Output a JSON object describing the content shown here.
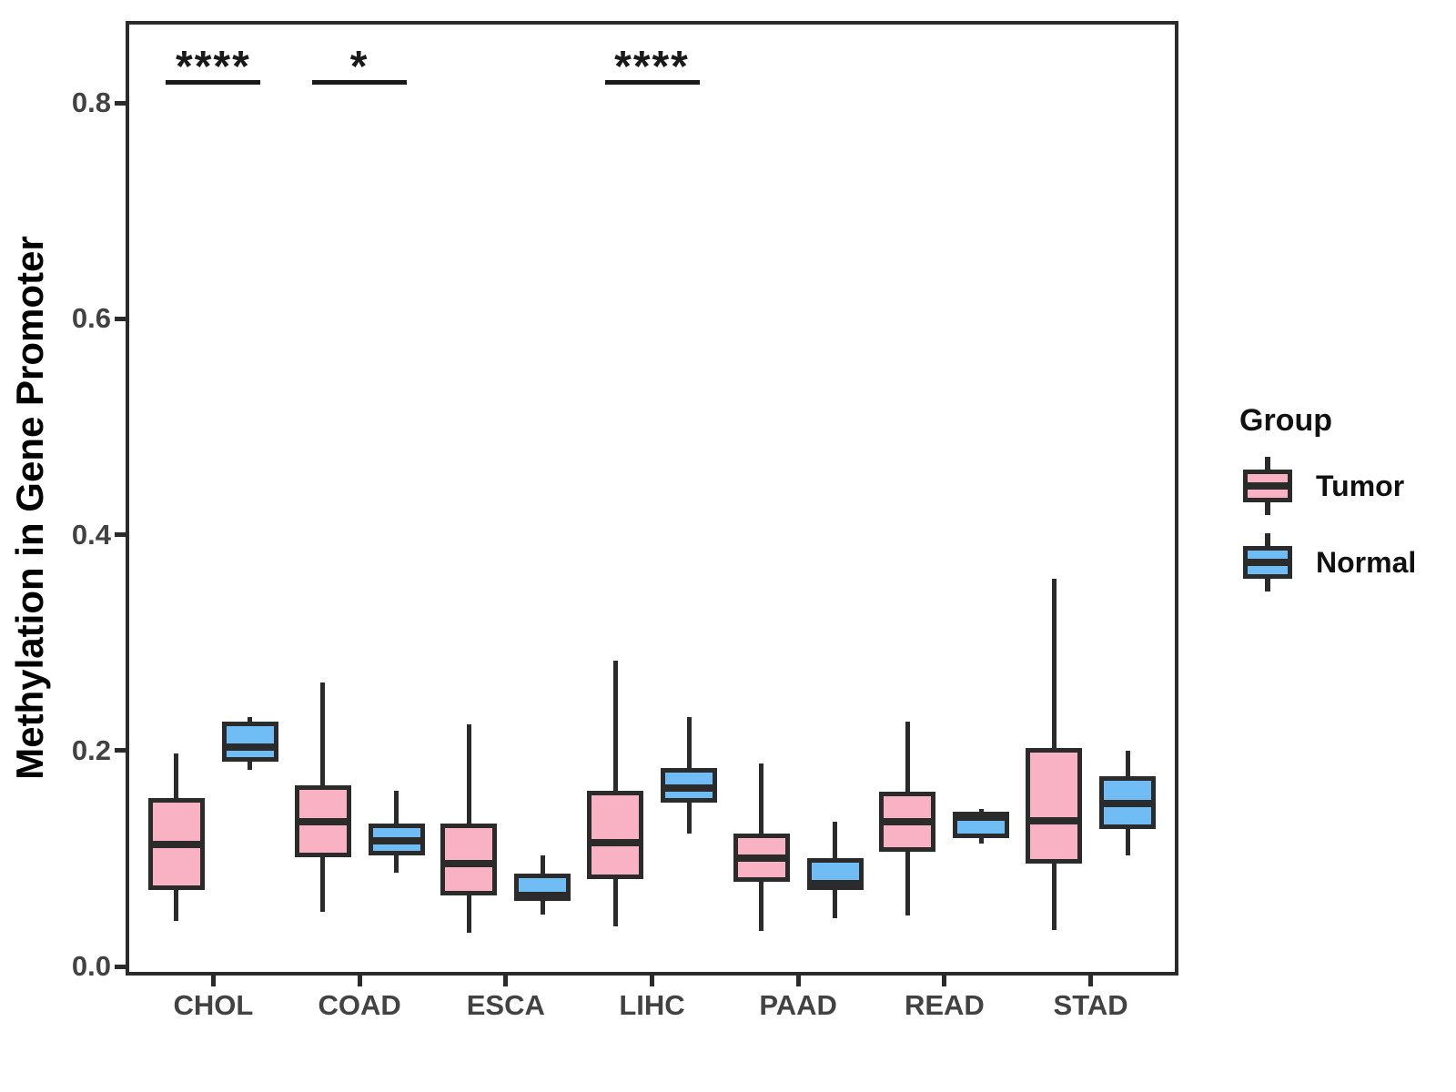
{
  "y_axis": {
    "title": "Methylation in Gene Promoter",
    "tick_labels": [
      "0.0",
      "0.2",
      "0.4",
      "0.6",
      "0.8"
    ],
    "tick_values": [
      0,
      0.2,
      0.4,
      0.6,
      0.8
    ]
  },
  "x_axis": {
    "categories": [
      "CHOL",
      "COAD",
      "ESCA",
      "LIHC",
      "PAAD",
      "READ",
      "STAD"
    ]
  },
  "legend": {
    "title": "Group",
    "items": [
      {
        "label": "Tumor",
        "color": "#F9B2C3"
      },
      {
        "label": "Normal",
        "color": "#70BCF4"
      }
    ]
  },
  "colors": {
    "box_border": "#2B2B2B",
    "axis_text": "#424242",
    "significance": "#1A1A1A",
    "tumor_fill": "#F9B2C3",
    "normal_fill": "#70BCF4"
  },
  "chart_data": {
    "type": "boxplot",
    "title": "",
    "xlabel": "",
    "ylabel": "Methylation in Gene Promoter",
    "ylim": [
      0,
      0.88
    ],
    "yticks": [
      0,
      0.2,
      0.4,
      0.6,
      0.8
    ],
    "grid": false,
    "legend_position": "right",
    "categories": [
      "CHOL",
      "COAD",
      "ESCA",
      "LIHC",
      "PAAD",
      "READ",
      "STAD"
    ],
    "series": [
      {
        "name": "Tumor",
        "color": "#F9B2C3",
        "boxes": [
          {
            "low": 0.042,
            "q1": 0.071,
            "median": 0.113,
            "q3": 0.156,
            "high": 0.197
          },
          {
            "low": 0.051,
            "q1": 0.101,
            "median": 0.134,
            "q3": 0.168,
            "high": 0.263
          },
          {
            "low": 0.031,
            "q1": 0.066,
            "median": 0.095,
            "q3": 0.132,
            "high": 0.224
          },
          {
            "low": 0.037,
            "q1": 0.081,
            "median": 0.115,
            "q3": 0.163,
            "high": 0.283
          },
          {
            "low": 0.033,
            "q1": 0.078,
            "median": 0.1,
            "q3": 0.123,
            "high": 0.188
          },
          {
            "low": 0.047,
            "q1": 0.106,
            "median": 0.134,
            "q3": 0.162,
            "high": 0.227
          },
          {
            "low": 0.034,
            "q1": 0.095,
            "median": 0.135,
            "q3": 0.202,
            "high": 0.359
          }
        ]
      },
      {
        "name": "Normal",
        "color": "#70BCF4",
        "boxes": [
          {
            "low": 0.182,
            "q1": 0.19,
            "median": 0.203,
            "q3": 0.227,
            "high": 0.231
          },
          {
            "low": 0.087,
            "q1": 0.103,
            "median": 0.116,
            "q3": 0.132,
            "high": 0.163
          },
          {
            "low": 0.048,
            "q1": 0.061,
            "median": 0.066,
            "q3": 0.086,
            "high": 0.103
          },
          {
            "low": 0.123,
            "q1": 0.152,
            "median": 0.165,
            "q3": 0.184,
            "high": 0.231
          },
          {
            "low": 0.045,
            "q1": 0.071,
            "median": 0.077,
            "q3": 0.1,
            "high": 0.134
          },
          {
            "low": 0.114,
            "q1": 0.119,
            "median": 0.138,
            "q3": 0.143,
            "high": 0.146
          },
          {
            "low": 0.103,
            "q1": 0.127,
            "median": 0.151,
            "q3": 0.176,
            "high": 0.2
          }
        ]
      }
    ],
    "significance": [
      {
        "category": "CHOL",
        "label": "****"
      },
      {
        "category": "COAD",
        "label": "*"
      },
      {
        "category": "LIHC",
        "label": "****"
      }
    ]
  }
}
